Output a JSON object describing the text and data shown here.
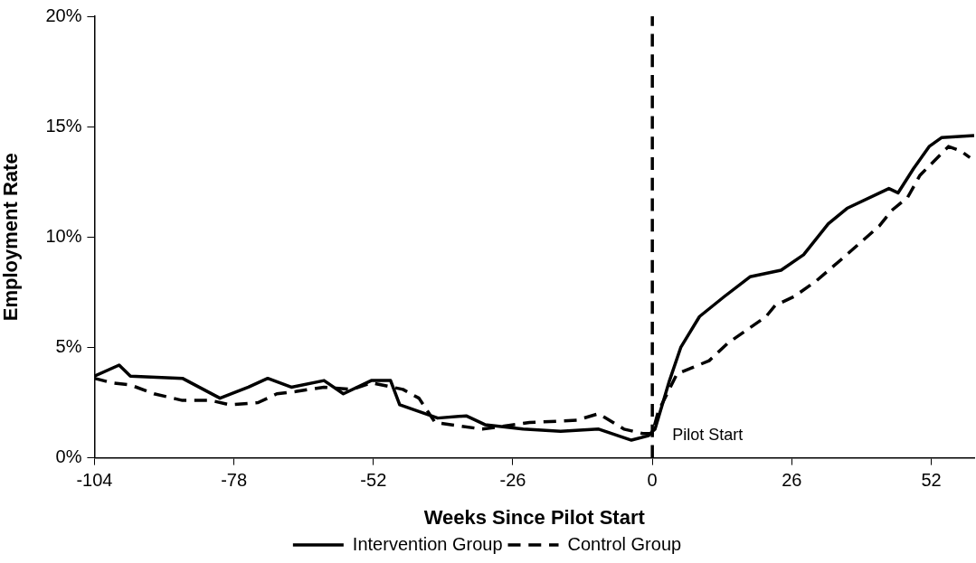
{
  "chart_data": {
    "type": "line",
    "xlabel": "Weeks Since Pilot Start",
    "ylabel": "Employment Rate",
    "xlim": [
      -104,
      60
    ],
    "xticks": [
      -104,
      -78,
      -52,
      -26,
      0,
      26,
      52
    ],
    "ylim": [
      0,
      20
    ],
    "yticks": [
      {
        "value": 0,
        "label": "0%"
      },
      {
        "value": 5,
        "label": "5%"
      },
      {
        "value": 10,
        "label": "10%"
      },
      {
        "value": 15,
        "label": "15%"
      },
      {
        "value": 20,
        "label": "20%"
      }
    ],
    "grid": false,
    "legend": "bottom",
    "marker": "none",
    "ref_lines": [
      {
        "axis": "x",
        "value": 0,
        "label": "Pilot Start",
        "color": "#000000",
        "line_style": "dashed"
      }
    ],
    "series": [
      {
        "name": "Intervention Group",
        "color": "#000000",
        "line_style": "solid",
        "x": [
          -104,
          -99.4,
          -97.3,
          -87.6,
          -80.6,
          -75.3,
          -71.7,
          -67.3,
          -61.2,
          -57.6,
          -52.4,
          -48.8,
          -47.1,
          -40,
          -34.7,
          -31.2,
          -24.1,
          -17.1,
          -10,
          -3.9,
          -0.7,
          0,
          0.5,
          3.2,
          5.3,
          8.8,
          13.4,
          18.2,
          24,
          28.2,
          32.8,
          36.3,
          44.1,
          45.8,
          48.7,
          51.6,
          53.9,
          60
        ],
        "values": [
          3.7,
          4.2,
          3.7,
          3.6,
          2.7,
          3.2,
          3.6,
          3.2,
          3.5,
          2.9,
          3.5,
          3.5,
          2.4,
          1.8,
          1.9,
          1.5,
          1.3,
          1.2,
          1.3,
          0.8,
          1.0,
          1.2,
          1.3,
          3.5,
          5.0,
          6.4,
          7.3,
          8.2,
          8.5,
          9.2,
          10.6,
          11.3,
          12.2,
          12.0,
          13.1,
          14.1,
          14.5,
          14.6
        ]
      },
      {
        "name": "Control Group",
        "color": "#000000",
        "line_style": "dashed",
        "x": [
          -104,
          -100.8,
          -97.3,
          -92.9,
          -87.6,
          -82.3,
          -78.8,
          -73.5,
          -70,
          -66.5,
          -61.2,
          -55.9,
          -52.4,
          -46.5,
          -43.5,
          -40.5,
          -31.7,
          -22.9,
          -14.1,
          -10,
          -5.3,
          -1.8,
          0,
          1.1,
          4.6,
          10.6,
          14.1,
          21.2,
          22.9,
          26.4,
          30.5,
          35.3,
          42.3,
          44.6,
          47.6,
          49.9,
          55.2,
          57.5,
          59.2
        ],
        "values": [
          3.6,
          3.4,
          3.3,
          2.9,
          2.6,
          2.6,
          2.4,
          2.5,
          2.9,
          3.0,
          3.2,
          3.1,
          3.4,
          3.1,
          2.7,
          1.6,
          1.3,
          1.6,
          1.7,
          2.0,
          1.3,
          1.1,
          1.1,
          2.1,
          3.8,
          4.4,
          5.2,
          6.4,
          6.9,
          7.3,
          8.0,
          9.0,
          10.5,
          11.2,
          11.8,
          12.8,
          14.1,
          13.9,
          13.6
        ]
      }
    ]
  }
}
